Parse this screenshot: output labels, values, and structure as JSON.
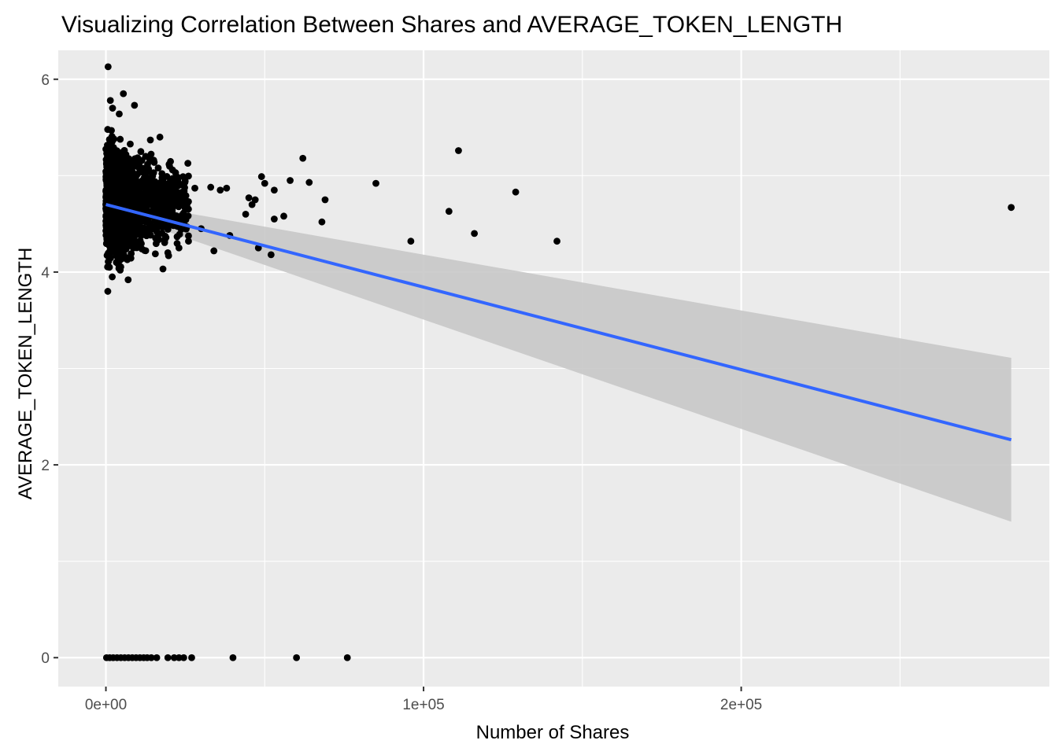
{
  "chart_data": {
    "type": "scatter",
    "title": "Visualizing Correlation Between Shares and AVERAGE_TOKEN_LENGTH",
    "xlabel": "Number of Shares",
    "ylabel": "AVERAGE_TOKEN_LENGTH",
    "xlim": [
      -15000,
      297000
    ],
    "ylim": [
      -0.3,
      6.3
    ],
    "x_ticks": [
      {
        "value": 0,
        "label": "0e+00"
      },
      {
        "value": 100000,
        "label": "1e+05"
      },
      {
        "value": 200000,
        "label": "2e+05"
      }
    ],
    "x_minor_ticks": [
      50000,
      150000,
      250000
    ],
    "y_ticks": [
      {
        "value": 0,
        "label": "0"
      },
      {
        "value": 2,
        "label": "2"
      },
      {
        "value": 4,
        "label": "4"
      },
      {
        "value": 6,
        "label": "6"
      }
    ],
    "y_minor_ticks": [
      1,
      3,
      5
    ],
    "grid": true,
    "colors": {
      "panel": "#ebebeb",
      "grid": "#ffffff",
      "points": "#000000",
      "trend_line": "#3366ff",
      "confidence_band": "#c8c8c8"
    },
    "series": [
      {
        "points": [
          [
            700,
            6.13
          ],
          [
            1400,
            5.78
          ],
          [
            5500,
            5.85
          ],
          [
            9000,
            5.73
          ],
          [
            4200,
            5.64
          ],
          [
            2100,
            5.7
          ],
          [
            14000,
            5.37
          ],
          [
            17000,
            5.4
          ],
          [
            11000,
            5.25
          ],
          [
            12500,
            5.2
          ],
          [
            9800,
            5.15
          ],
          [
            600,
            3.8
          ],
          [
            2000,
            3.95
          ],
          [
            7000,
            3.92
          ],
          [
            4500,
            4.02
          ],
          [
            1100,
            4.05
          ],
          [
            3300,
            4.1
          ],
          [
            19500,
            4.2
          ],
          [
            23000,
            4.25
          ],
          [
            26000,
            4.32
          ],
          [
            30000,
            4.45
          ],
          [
            34000,
            4.22
          ],
          [
            39000,
            4.38
          ],
          [
            44000,
            4.6
          ],
          [
            48000,
            4.25
          ],
          [
            52000,
            4.18
          ],
          [
            53000,
            4.55
          ],
          [
            56000,
            4.58
          ],
          [
            21000,
            4.97
          ],
          [
            28000,
            4.87
          ],
          [
            33000,
            4.88
          ],
          [
            36000,
            4.85
          ],
          [
            38000,
            4.87
          ],
          [
            45000,
            4.77
          ],
          [
            46000,
            4.7
          ],
          [
            47000,
            4.75
          ],
          [
            49000,
            4.99
          ],
          [
            50000,
            4.92
          ],
          [
            53000,
            4.85
          ],
          [
            58000,
            4.95
          ],
          [
            62000,
            5.18
          ],
          [
            64000,
            4.93
          ],
          [
            68000,
            4.52
          ],
          [
            69000,
            4.75
          ],
          [
            85000,
            4.92
          ],
          [
            96000,
            4.32
          ],
          [
            108000,
            4.63
          ],
          [
            111000,
            5.26
          ],
          [
            116000,
            4.4
          ],
          [
            129000,
            4.83
          ],
          [
            142000,
            4.32
          ],
          [
            285000,
            4.67
          ],
          [
            200,
            0
          ],
          [
            1200,
            0
          ],
          [
            2300,
            0
          ],
          [
            3500,
            0
          ],
          [
            4700,
            0
          ],
          [
            5900,
            0
          ],
          [
            7100,
            0
          ],
          [
            8300,
            0
          ],
          [
            9500,
            0
          ],
          [
            10700,
            0
          ],
          [
            11900,
            0
          ],
          [
            13000,
            0
          ],
          [
            14300,
            0
          ],
          [
            16000,
            0
          ],
          [
            19500,
            0
          ],
          [
            21500,
            0
          ],
          [
            23000,
            0
          ],
          [
            24500,
            0
          ],
          [
            27000,
            0
          ],
          [
            40000,
            0
          ],
          [
            60000,
            0
          ],
          [
            76000,
            0
          ]
        ]
      }
    ],
    "trend_line": {
      "method": "linear",
      "x": [
        0,
        285000
      ],
      "y": [
        4.7,
        2.26
      ],
      "ci_lower": [
        4.64,
        1.41
      ],
      "ci_upper": [
        4.76,
        3.11
      ]
    }
  }
}
